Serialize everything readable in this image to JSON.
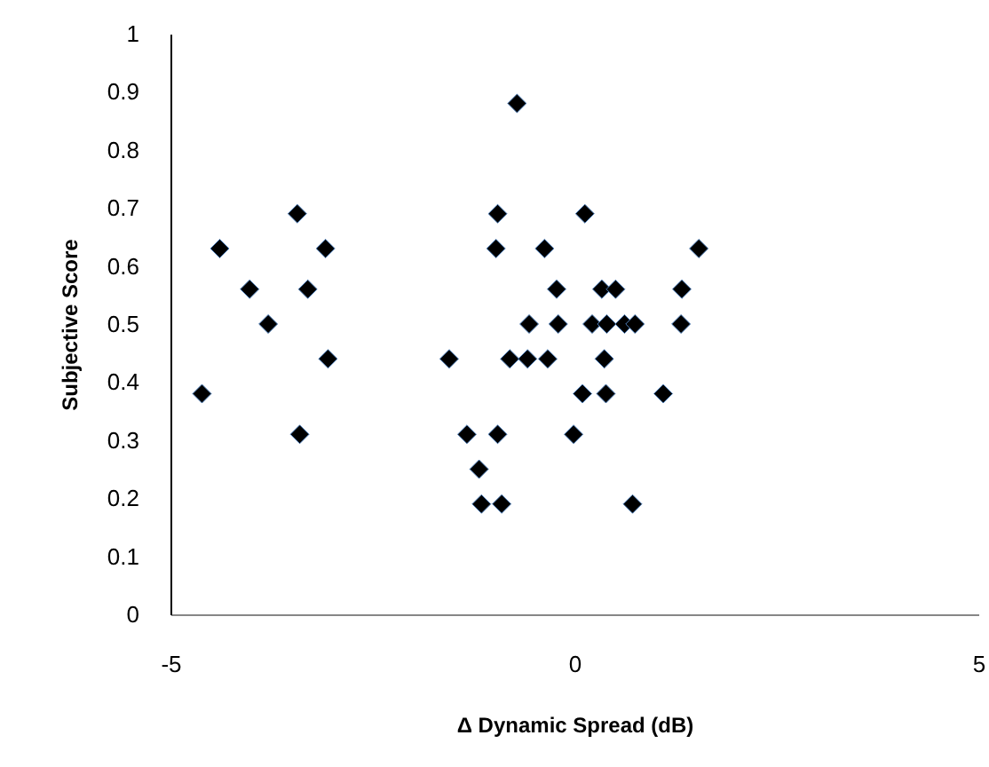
{
  "chart_data": {
    "type": "scatter",
    "xlabel": "Δ Dynamic Spread (dB)",
    "ylabel": "Subjective Score",
    "xlim": [
      -5,
      5
    ],
    "xticks": [
      -5,
      0,
      5
    ],
    "ylim": [
      0,
      1
    ],
    "yticks": [
      0,
      0.1,
      0.2,
      0.3,
      0.4,
      0.5,
      0.6,
      0.7,
      0.8,
      0.9,
      1
    ],
    "grid": false,
    "marker": "diamond",
    "series": [
      {
        "color": "#000000",
        "x": [
          -4.61,
          -4.39,
          -4.02,
          -3.79,
          -3.43,
          -3.3,
          -3.08,
          -3.05,
          -3.4,
          -1.55,
          -0.71,
          -0.95,
          0.13,
          -0.97,
          -0.37,
          1.54,
          -0.22,
          0.34,
          0.51,
          1.33,
          -0.56,
          -0.2,
          0.22,
          0.4,
          0.62,
          0.75,
          1.32,
          -0.8,
          -0.58,
          -0.33,
          0.37,
          0.1,
          0.39,
          1.1,
          -1.33,
          -0.95,
          -0.01,
          -1.18,
          -1.15,
          -0.9,
          0.72
        ],
        "values": [
          0.38,
          0.63,
          0.56,
          0.5,
          0.69,
          0.56,
          0.63,
          0.44,
          0.31,
          0.44,
          0.88,
          0.69,
          0.69,
          0.63,
          0.63,
          0.63,
          0.56,
          0.56,
          0.56,
          0.56,
          0.5,
          0.5,
          0.5,
          0.5,
          0.5,
          0.5,
          0.5,
          0.44,
          0.44,
          0.44,
          0.44,
          0.38,
          0.38,
          0.38,
          0.31,
          0.31,
          0.31,
          0.25,
          0.19,
          0.19,
          0.19
        ]
      }
    ]
  }
}
